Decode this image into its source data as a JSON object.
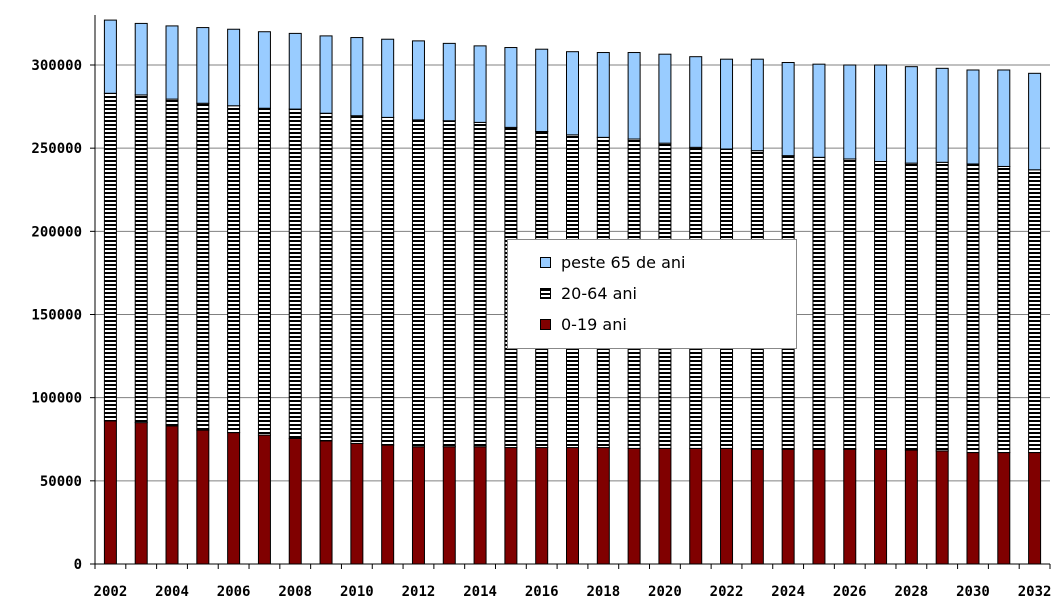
{
  "chart_data": {
    "type": "bar",
    "stacked": true,
    "title": "",
    "xlabel": "",
    "ylabel": "",
    "ylim": [
      0,
      330000
    ],
    "yticks": [
      "0",
      "50000",
      "100000",
      "150000",
      "200000",
      "250000",
      "300000"
    ],
    "xtick_labels": [
      "2002",
      "2004",
      "2006",
      "2008",
      "2010",
      "2012",
      "2014",
      "2016",
      "2018",
      "2020",
      "2022",
      "2024",
      "2026",
      "2028",
      "2030",
      "2032"
    ],
    "categories": [
      "2002",
      "2003",
      "2004",
      "2005",
      "2006",
      "2007",
      "2008",
      "2009",
      "2010",
      "2011",
      "2012",
      "2013",
      "2014",
      "2015",
      "2016",
      "2017",
      "2018",
      "2019",
      "2020",
      "2021",
      "2022",
      "2023",
      "2024",
      "2025",
      "2026",
      "2027",
      "2028",
      "2029",
      "2030",
      "2031",
      "2032"
    ],
    "grid": true,
    "legend_position": "center-right",
    "series": [
      {
        "name": "0-19 ani",
        "color": "#800000",
        "values": [
          86000,
          85000,
          83000,
          80500,
          79000,
          77500,
          75500,
          74000,
          72500,
          71500,
          70500,
          70500,
          70500,
          70000,
          70000,
          70000,
          70000,
          69500,
          69500,
          69500,
          69500,
          69000,
          69000,
          69000,
          69000,
          69000,
          68500,
          68000,
          67000,
          67000,
          67000
        ]
      },
      {
        "name": "20-64 ani",
        "color": "#ffffff",
        "values": [
          197000,
          197000,
          196500,
          196500,
          196500,
          196500,
          198000,
          197000,
          197000,
          197000,
          196500,
          196000,
          195000,
          192500,
          190000,
          188000,
          186500,
          186000,
          183500,
          181000,
          180000,
          179500,
          176500,
          175500,
          174500,
          173000,
          172500,
          173500,
          173500,
          172000,
          170000
        ]
      },
      {
        "name": "peste 65 de ani",
        "color": "#99ccff",
        "values": [
          44000,
          43000,
          44000,
          45500,
          46000,
          46000,
          45500,
          46500,
          47000,
          47000,
          47500,
          46500,
          46000,
          48000,
          49500,
          50000,
          51000,
          52000,
          53500,
          54500,
          54000,
          55000,
          56000,
          56000,
          56500,
          58000,
          58000,
          56500,
          56500,
          58000,
          58000
        ]
      }
    ]
  }
}
